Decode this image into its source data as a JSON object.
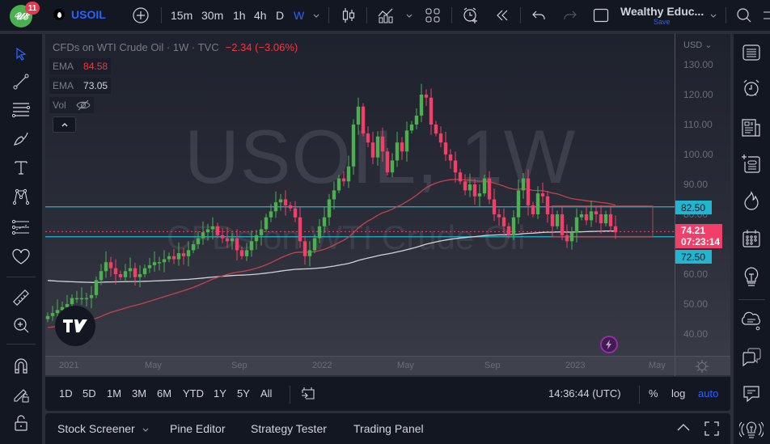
{
  "topbar": {
    "notification_count": "11",
    "symbol": "USOIL",
    "intervals": [
      "15m",
      "30m",
      "1h",
      "4h",
      "D",
      "W"
    ],
    "active_interval": "W",
    "layout_name": "Wealthy Educ...",
    "layout_save": "Save"
  },
  "legend": {
    "title": "CFDs on WTI Crude Oil · 1W · TVC",
    "change": "−2.34 (−3.06%)",
    "ema1_label": "EMA",
    "ema1_value": "84.58",
    "ema2_label": "EMA",
    "ema2_value": "73.05",
    "vol_label": "Vol"
  },
  "watermark": {
    "symbol": "USOIL, 1W",
    "description": "CFDs on WTI Crude Oil"
  },
  "price_axis": {
    "currency": "USD",
    "ticks": [
      "130.00",
      "120.00",
      "110.00",
      "100.00",
      "90.00",
      "80.00",
      "70.00",
      "60.00",
      "50.00",
      "40.00"
    ],
    "resistance_label": "82.50",
    "support_label": "72.50",
    "last_price": "74.21",
    "countdown": "07:23:14"
  },
  "time_axis": {
    "ticks": [
      "2021",
      "May",
      "Sep",
      "2022",
      "May",
      "Sep",
      "2023",
      "May"
    ]
  },
  "range_bar": {
    "ranges": [
      "1D",
      "5D",
      "1M",
      "3M",
      "6M",
      "YTD",
      "1Y",
      "5Y",
      "All"
    ],
    "clock": "14:36:44 (UTC)",
    "percent_label": "%",
    "log_label": "log",
    "auto_label": "auto"
  },
  "panel_bar": {
    "tabs": [
      "Stock Screener",
      "Pine Editor",
      "Strategy Tester",
      "Trading Panel"
    ]
  },
  "colors": {
    "up": "#4caf50",
    "down": "#f23f6a",
    "ema_fast": "#c2424f",
    "ema_slow": "#d1d4dc",
    "hline": "#22b5d0",
    "accent": "#2962ff"
  },
  "chart_data": {
    "type": "candlestick",
    "title": "CFDs on WTI Crude Oil · 1W · TVC",
    "symbol": "USOIL",
    "interval": "1W",
    "last": 74.21,
    "change": -2.34,
    "change_pct": -3.06,
    "ylim": [
      35,
      133
    ],
    "y_ticks": [
      40,
      50,
      60,
      70,
      80,
      90,
      100,
      110,
      120,
      130
    ],
    "x_ticks": [
      "2021",
      "May",
      "Sep",
      "2022",
      "May",
      "Sep",
      "2023",
      "May"
    ],
    "horizontal_lines": [
      82.5,
      72.5
    ],
    "indicators": [
      {
        "name": "EMA",
        "value": 84.58,
        "color": "#c2424f"
      },
      {
        "name": "EMA",
        "value": 73.05,
        "color": "#d1d4dc"
      }
    ],
    "rectangle": {
      "from": "Nov 2022",
      "to": "Apr 2023",
      "top": 82.8,
      "bottom": 72.6
    },
    "closes_approx": [
      46,
      47,
      48,
      49,
      50,
      52,
      52,
      52,
      52,
      53,
      58,
      61,
      64,
      62,
      60,
      59,
      61,
      62,
      59,
      60,
      62,
      63,
      64,
      64,
      65,
      66,
      65,
      67,
      66,
      68,
      70,
      72,
      74,
      75,
      76,
      73,
      72,
      71,
      72,
      68,
      66,
      68,
      71,
      73,
      75,
      79,
      81,
      84,
      85,
      83,
      82,
      79,
      71,
      66,
      68,
      72,
      76,
      79,
      85,
      88,
      92,
      91,
      96,
      110,
      116,
      107,
      104,
      99,
      106,
      101,
      94,
      98,
      104,
      101,
      108,
      110,
      113,
      120,
      119,
      110,
      107,
      104,
      100,
      98,
      94,
      91,
      88,
      90,
      86,
      87,
      92,
      85,
      80,
      79,
      76,
      73,
      79,
      88,
      92,
      83,
      80,
      87,
      86,
      80,
      76,
      80,
      73,
      71,
      74,
      79,
      80,
      78,
      81,
      80,
      77,
      80,
      76,
      74
    ]
  }
}
